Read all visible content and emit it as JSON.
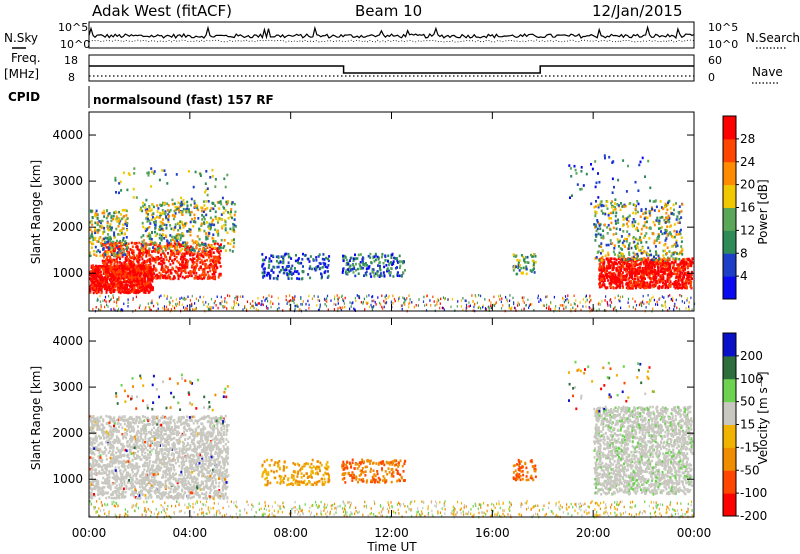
{
  "header": {
    "station": "Adak West (fitACF)",
    "beam": "Beam 10",
    "date": "12/Jan/2015"
  },
  "left_labels": {
    "nsky": "N.Sky",
    "freq": "Freq.",
    "freq_unit": "[MHz]",
    "cpid": "CPID"
  },
  "right_labels": {
    "nsearch": "N.Search",
    "nave": "Nave"
  },
  "noise_axis": {
    "top": "10^5",
    "bottom": "10^0"
  },
  "freq_axis": {
    "top": "18",
    "bottom": "8"
  },
  "nave_axis": {
    "top": "60",
    "bottom": "0"
  },
  "cpid_text": "normalsound (fast) 157 RF",
  "colors": {
    "power": [
      "#0a0af0",
      "#1e3ec8",
      "#2e8b57",
      "#5aa75a",
      "#f0c800",
      "#ff8c00",
      "#ff4500",
      "#ff0000"
    ],
    "velocity": [
      "#0a10c8",
      "#2e6e3c",
      "#6cd250",
      "#c8c8c0",
      "#f0b400",
      "#f08c00",
      "#ff4500",
      "#ff0000"
    ]
  },
  "chart_data": [
    {
      "type": "heatmap",
      "name": "power",
      "ylabel": "Slant Range [km]",
      "ylim": [
        180,
        4500
      ],
      "yticks": [
        "1000",
        "2000",
        "3000",
        "4000"
      ],
      "xlim_hours": [
        0,
        24
      ],
      "colorbar": {
        "label": "Power [dB]",
        "range": [
          0,
          32
        ],
        "ticks": [
          "4",
          "8",
          "12",
          "16",
          "20",
          "24",
          "28"
        ]
      },
      "echo_regions": [
        {
          "t": [
            0.0,
            2.5
          ],
          "r": [
            600,
            1200
          ],
          "level": "28+"
        },
        {
          "t": [
            0.5,
            5.2
          ],
          "r": [
            1000,
            1700
          ],
          "level": "24-28"
        },
        {
          "t": [
            2.0,
            5.8
          ],
          "r": [
            1600,
            2600
          ],
          "level": "8-20"
        },
        {
          "t": [
            0.0,
            1.5
          ],
          "r": [
            1400,
            2400
          ],
          "level": "8-20"
        },
        {
          "t": [
            6.8,
            9.5
          ],
          "r": [
            900,
            1450
          ],
          "level": "4-8"
        },
        {
          "t": [
            10.0,
            12.5
          ],
          "r": [
            950,
            1450
          ],
          "level": "4-12"
        },
        {
          "t": [
            16.8,
            17.7
          ],
          "r": [
            1000,
            1450
          ],
          "level": "8-16"
        },
        {
          "t": [
            20.2,
            23.9
          ],
          "r": [
            800,
            1350
          ],
          "level": "28+"
        },
        {
          "t": [
            20.0,
            23.5
          ],
          "r": [
            1300,
            2600
          ],
          "level": "8-20"
        }
      ]
    },
    {
      "type": "heatmap",
      "name": "velocity",
      "ylabel": "Slant Range [km]",
      "ylim": [
        180,
        4500
      ],
      "yticks": [
        "1000",
        "2000",
        "3000",
        "4000"
      ],
      "xlim_hours": [
        0,
        24
      ],
      "xticks": [
        "00:00",
        "04:00",
        "08:00",
        "12:00",
        "16:00",
        "20:00",
        "00:00"
      ],
      "xlabel": "Time UT",
      "colorbar": {
        "label": "Velocity [m s⁻¹]",
        "ticks": [
          "200",
          "100",
          "50",
          "15",
          "-15",
          "-50",
          "-100",
          "-200"
        ]
      },
      "echo_regions": [
        {
          "t": [
            0.0,
            5.5
          ],
          "r": [
            600,
            2400
          ],
          "level": "-15 to 15 (ground scatter)"
        },
        {
          "t": [
            6.8,
            9.5
          ],
          "r": [
            900,
            1450
          ],
          "level": "-50 to -15"
        },
        {
          "t": [
            10.0,
            12.5
          ],
          "r": [
            950,
            1450
          ],
          "level": "-100 to -50"
        },
        {
          "t": [
            16.8,
            17.7
          ],
          "r": [
            1000,
            1450
          ],
          "level": "-100 to -50"
        },
        {
          "t": [
            20.0,
            23.9
          ],
          "r": [
            700,
            2600
          ],
          "level": "-15 to 15 (ground scatter)"
        }
      ]
    }
  ]
}
